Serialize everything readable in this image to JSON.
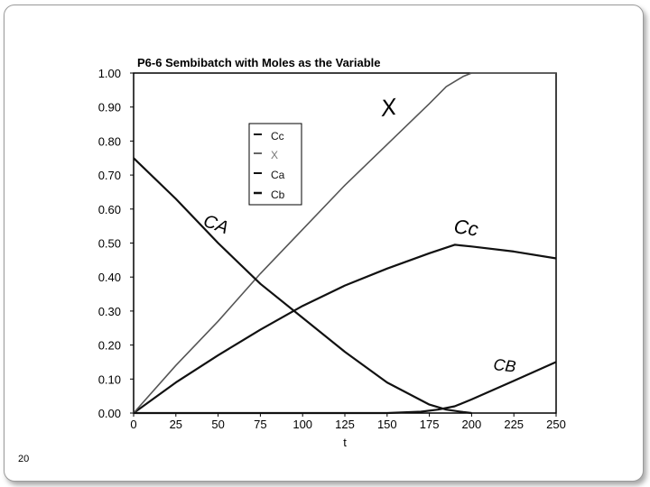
{
  "slide": {
    "page_number": "20"
  },
  "chart_data": {
    "type": "line",
    "title": "P6-6 Sembibatch with Moles as the Variable",
    "xlabel": "t",
    "ylabel": "",
    "xlim": [
      0,
      250
    ],
    "ylim": [
      0,
      1.0
    ],
    "x_ticks": [
      "0",
      "25",
      "50",
      "75",
      "100",
      "125",
      "150",
      "175",
      "200",
      "225",
      "250"
    ],
    "y_ticks": [
      "0.00",
      "0.10",
      "0.20",
      "0.30",
      "0.40",
      "0.50",
      "0.60",
      "0.70",
      "0.80",
      "0.90",
      "1.00"
    ],
    "grid": false,
    "legend_position": "upper-left-center",
    "legend": [
      "Cc",
      "X",
      "Ca",
      "Cb"
    ],
    "series": [
      {
        "name": "Cc",
        "color": "#111111",
        "x": [
          0,
          25,
          50,
          75,
          100,
          125,
          150,
          175,
          190,
          200,
          225,
          250
        ],
        "y": [
          0.0,
          0.09,
          0.17,
          0.245,
          0.315,
          0.375,
          0.425,
          0.47,
          0.495,
          0.49,
          0.475,
          0.455
        ]
      },
      {
        "name": "X",
        "color": "#555555",
        "x": [
          0,
          25,
          50,
          75,
          100,
          125,
          150,
          175,
          185,
          195,
          200,
          225,
          250
        ],
        "y": [
          0.0,
          0.14,
          0.27,
          0.41,
          0.54,
          0.67,
          0.79,
          0.91,
          0.96,
          0.99,
          1.0,
          1.0,
          1.0
        ]
      },
      {
        "name": "Ca",
        "color": "#111111",
        "x": [
          0,
          25,
          50,
          75,
          100,
          125,
          150,
          175,
          185,
          195,
          200
        ],
        "y": [
          0.75,
          0.63,
          0.5,
          0.38,
          0.28,
          0.18,
          0.09,
          0.025,
          0.01,
          0.003,
          0.0
        ]
      },
      {
        "name": "Cb",
        "color": "#111111",
        "x": [
          0,
          100,
          150,
          170,
          180,
          190,
          200,
          225,
          250
        ],
        "y": [
          0.0,
          0.0,
          0.0,
          0.004,
          0.01,
          0.02,
          0.04,
          0.095,
          0.15
        ]
      }
    ],
    "annotations": [
      "X",
      "CA",
      "Cc",
      "CB"
    ]
  }
}
